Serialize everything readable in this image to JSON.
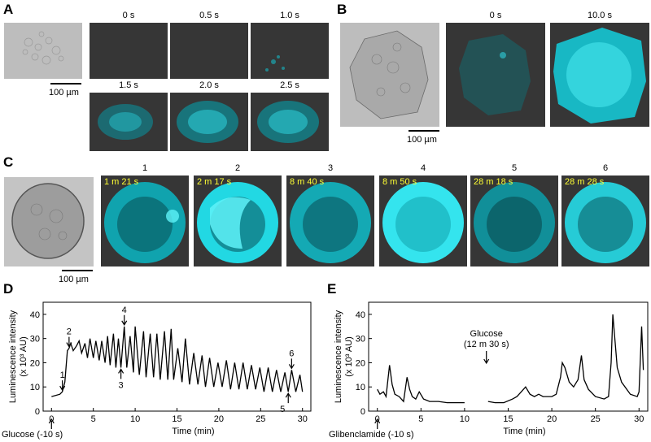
{
  "panels": {
    "A": {
      "letter": "A",
      "times": [
        "0 s",
        "0.5 s",
        "1.0 s",
        "1.5 s",
        "2.0 s",
        "2.5 s"
      ],
      "scale": "100 µm"
    },
    "B": {
      "letter": "B",
      "times": [
        "0 s",
        "10.0 s"
      ],
      "scale": "100 µm"
    },
    "C": {
      "letter": "C",
      "frames": [
        {
          "num": "1",
          "time": "1 m 21 s"
        },
        {
          "num": "2",
          "time": "2 m 17 s"
        },
        {
          "num": "3",
          "time": "8 m 40 s"
        },
        {
          "num": "4",
          "time": "8 m 50 s"
        },
        {
          "num": "5",
          "time": "28 m 18 s"
        },
        {
          "num": "6",
          "time": "28 m 28 s"
        }
      ],
      "scale": "100 µm"
    }
  },
  "colors": {
    "fluor": "#00e5f0",
    "dark_bg": "#363636",
    "bright_bg": "#bdbdbd",
    "timestamp": "#ffff33"
  },
  "chart_data": [
    {
      "panel": "D",
      "type": "line",
      "ylabel_line1": "Luminescence intensity",
      "ylabel_line2": "(x 10³ AU)",
      "xlabel": "Time (min)",
      "xlim": [
        -1,
        31
      ],
      "ylim": [
        0,
        45
      ],
      "xticks": [
        "0",
        "5",
        "10",
        "15",
        "20",
        "25",
        "30"
      ],
      "yticks": [
        "0",
        "10",
        "20",
        "30",
        "40"
      ],
      "stimulus": "Glucose (-10 s)",
      "markers": [
        "1",
        "2",
        "3",
        "4",
        "5",
        "6"
      ],
      "x": [
        0,
        1.0,
        1.3,
        1.6,
        1.9,
        2.1,
        2.3,
        2.6,
        3.0,
        3.3,
        3.6,
        4.0,
        4.3,
        4.6,
        5.0,
        5.3,
        5.7,
        6.0,
        6.4,
        6.7,
        7.0,
        7.4,
        7.7,
        8.0,
        8.3,
        8.7,
        9.0,
        9.4,
        9.8,
        10.0,
        10.5,
        11.0,
        11.3,
        11.8,
        12.2,
        12.6,
        13.0,
        13.5,
        13.9,
        14.3,
        14.6,
        15.1,
        15.6,
        16.0,
        16.5,
        17.0,
        17.5,
        18.0,
        18.4,
        18.9,
        19.4,
        19.9,
        20.4,
        20.9,
        21.4,
        21.9,
        22.4,
        22.9,
        23.4,
        23.9,
        24.4,
        24.9,
        25.4,
        25.9,
        26.4,
        26.9,
        27.4,
        27.9,
        28.3,
        28.7,
        29.2,
        29.7,
        30.0
      ],
      "y": [
        6,
        7,
        8,
        12,
        25,
        26,
        28,
        25,
        27,
        29,
        24,
        28,
        22,
        30,
        22,
        29,
        21,
        29,
        20,
        31,
        19,
        32,
        18,
        30,
        18,
        35,
        18,
        31,
        16,
        35,
        15,
        33,
        14,
        32,
        14,
        32,
        13,
        33,
        13,
        34,
        13,
        26,
        12,
        30,
        11,
        24,
        11,
        23,
        10,
        22,
        10,
        20,
        10,
        21,
        9,
        20,
        9,
        20,
        9,
        19,
        9,
        18,
        8,
        18,
        8,
        17,
        8,
        16,
        8,
        17,
        8,
        15,
        8
      ]
    },
    {
      "panel": "E",
      "type": "line",
      "ylabel_line1": "Luminescence intensity",
      "ylabel_line2": "(x 10³ AU)",
      "xlabel": "Time (min)",
      "xlim": [
        -1,
        31
      ],
      "ylim": [
        0,
        45
      ],
      "xticks": [
        "0",
        "5",
        "10",
        "15",
        "20",
        "25",
        "30"
      ],
      "yticks": [
        "0",
        "10",
        "20",
        "30",
        "40"
      ],
      "stimulus": "Glibenclamide (-10 s)",
      "annotation_line1": "Glucose",
      "annotation_line2": "(12 m 30 s)",
      "segments": [
        {
          "x": [
            0,
            0.3,
            0.7,
            1.0,
            1.4,
            1.7,
            2.0,
            2.5,
            3.0,
            3.4,
            3.7,
            4.0,
            4.4,
            4.8,
            5.3,
            6.0,
            7.0,
            8.0,
            9.0,
            10.0
          ],
          "y": [
            9,
            7,
            8,
            6,
            19,
            11,
            7,
            6,
            4,
            14,
            9,
            6,
            5,
            8,
            5,
            4,
            4,
            3.5,
            3.5,
            3.5
          ]
        },
        {
          "x": [
            12.7,
            13.5,
            14.5,
            15.5,
            16.0,
            16.5,
            17.0,
            17.5,
            18.0,
            18.5,
            19.0,
            19.5,
            20.0,
            20.5,
            21.0,
            21.2,
            21.5,
            22.0,
            22.5,
            23.0,
            23.4,
            23.7,
            24.2,
            25.0,
            26.0,
            26.5,
            26.8,
            27.0,
            27.5,
            28.0,
            29.0,
            29.8,
            30.0,
            30.3,
            30.5
          ],
          "y": [
            4,
            3.5,
            3.5,
            5,
            6,
            8,
            10,
            7,
            6,
            7,
            6,
            6,
            6,
            7,
            14,
            20,
            18,
            12,
            10,
            13,
            23,
            13,
            9,
            6,
            5,
            6,
            20,
            40,
            18,
            12,
            7,
            6,
            8,
            35,
            17
          ]
        }
      ]
    }
  ]
}
